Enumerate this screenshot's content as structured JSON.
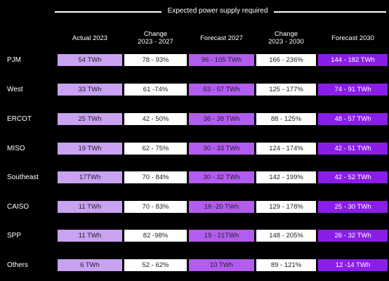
{
  "header": {
    "group_title": "Expected power supply required",
    "columns": [
      "Actual  2023",
      "Change\n2023 - 2027",
      "Forecast 2027",
      "Change\n2023 - 2030",
      "Forecast 2030"
    ]
  },
  "colors": {
    "background": "#000000",
    "actual_fill": "#c9a2f2",
    "change_fill": "#ffffff",
    "forecast_2027_fill": "#b35cf0",
    "forecast_2030_fill": "#8a1ee8",
    "dark_text": "#222222",
    "light_text": "#ffffff"
  },
  "rows": [
    {
      "region": "PJM",
      "actual": "54 TWh",
      "change_2027": "78 - 93%",
      "forecast_2027": "96 - 105 TWh",
      "change_2030": "166 - 236%",
      "forecast_2030": "144 - 182 TWh"
    },
    {
      "region": "West",
      "actual": "33 TWh",
      "change_2027": "61 -74%",
      "forecast_2027": "53 - 57 TWh",
      "change_2030": "125 - 177%",
      "forecast_2030": "74 - 91 TWh"
    },
    {
      "region": "ERCOT",
      "actual": "25 TWh",
      "change_2027": "42 - 50%",
      "forecast_2027": "36 - 38 TWh",
      "change_2030": "88 - 125%",
      "forecast_2030": "48 - 57 TWh"
    },
    {
      "region": "MISO",
      "actual": "19 TWh",
      "change_2027": "62 - 75%",
      "forecast_2027": "30 - 33 TWh",
      "change_2030": "124 - 174%",
      "forecast_2030": "42 - 51 TWh"
    },
    {
      "region": "Southeast",
      "actual": "17TWh",
      "change_2027": "70 - 84%",
      "forecast_2027": "30 - 32 TWh",
      "change_2030": "142 - 199%",
      "forecast_2030": "42 - 52 TWh"
    },
    {
      "region": "CAISO",
      "actual": "11 TWh",
      "change_2027": "70 - 83%",
      "forecast_2027": "18 -20 TWh",
      "change_2030": "129 - 178%",
      "forecast_2030": "25 - 30 TWh"
    },
    {
      "region": "SPP",
      "actual": "11 TWh",
      "change_2027": "82 -98%",
      "forecast_2027": "19 - 21TWh",
      "change_2030": "148 - 205%",
      "forecast_2030": "26 - 32 TWh"
    },
    {
      "region": "Others",
      "actual": "6 TWh",
      "change_2027": "52 - 62%",
      "forecast_2027": "10 TWh",
      "change_2030": "89 - 121%",
      "forecast_2030": "12 -14 TWh"
    }
  ]
}
